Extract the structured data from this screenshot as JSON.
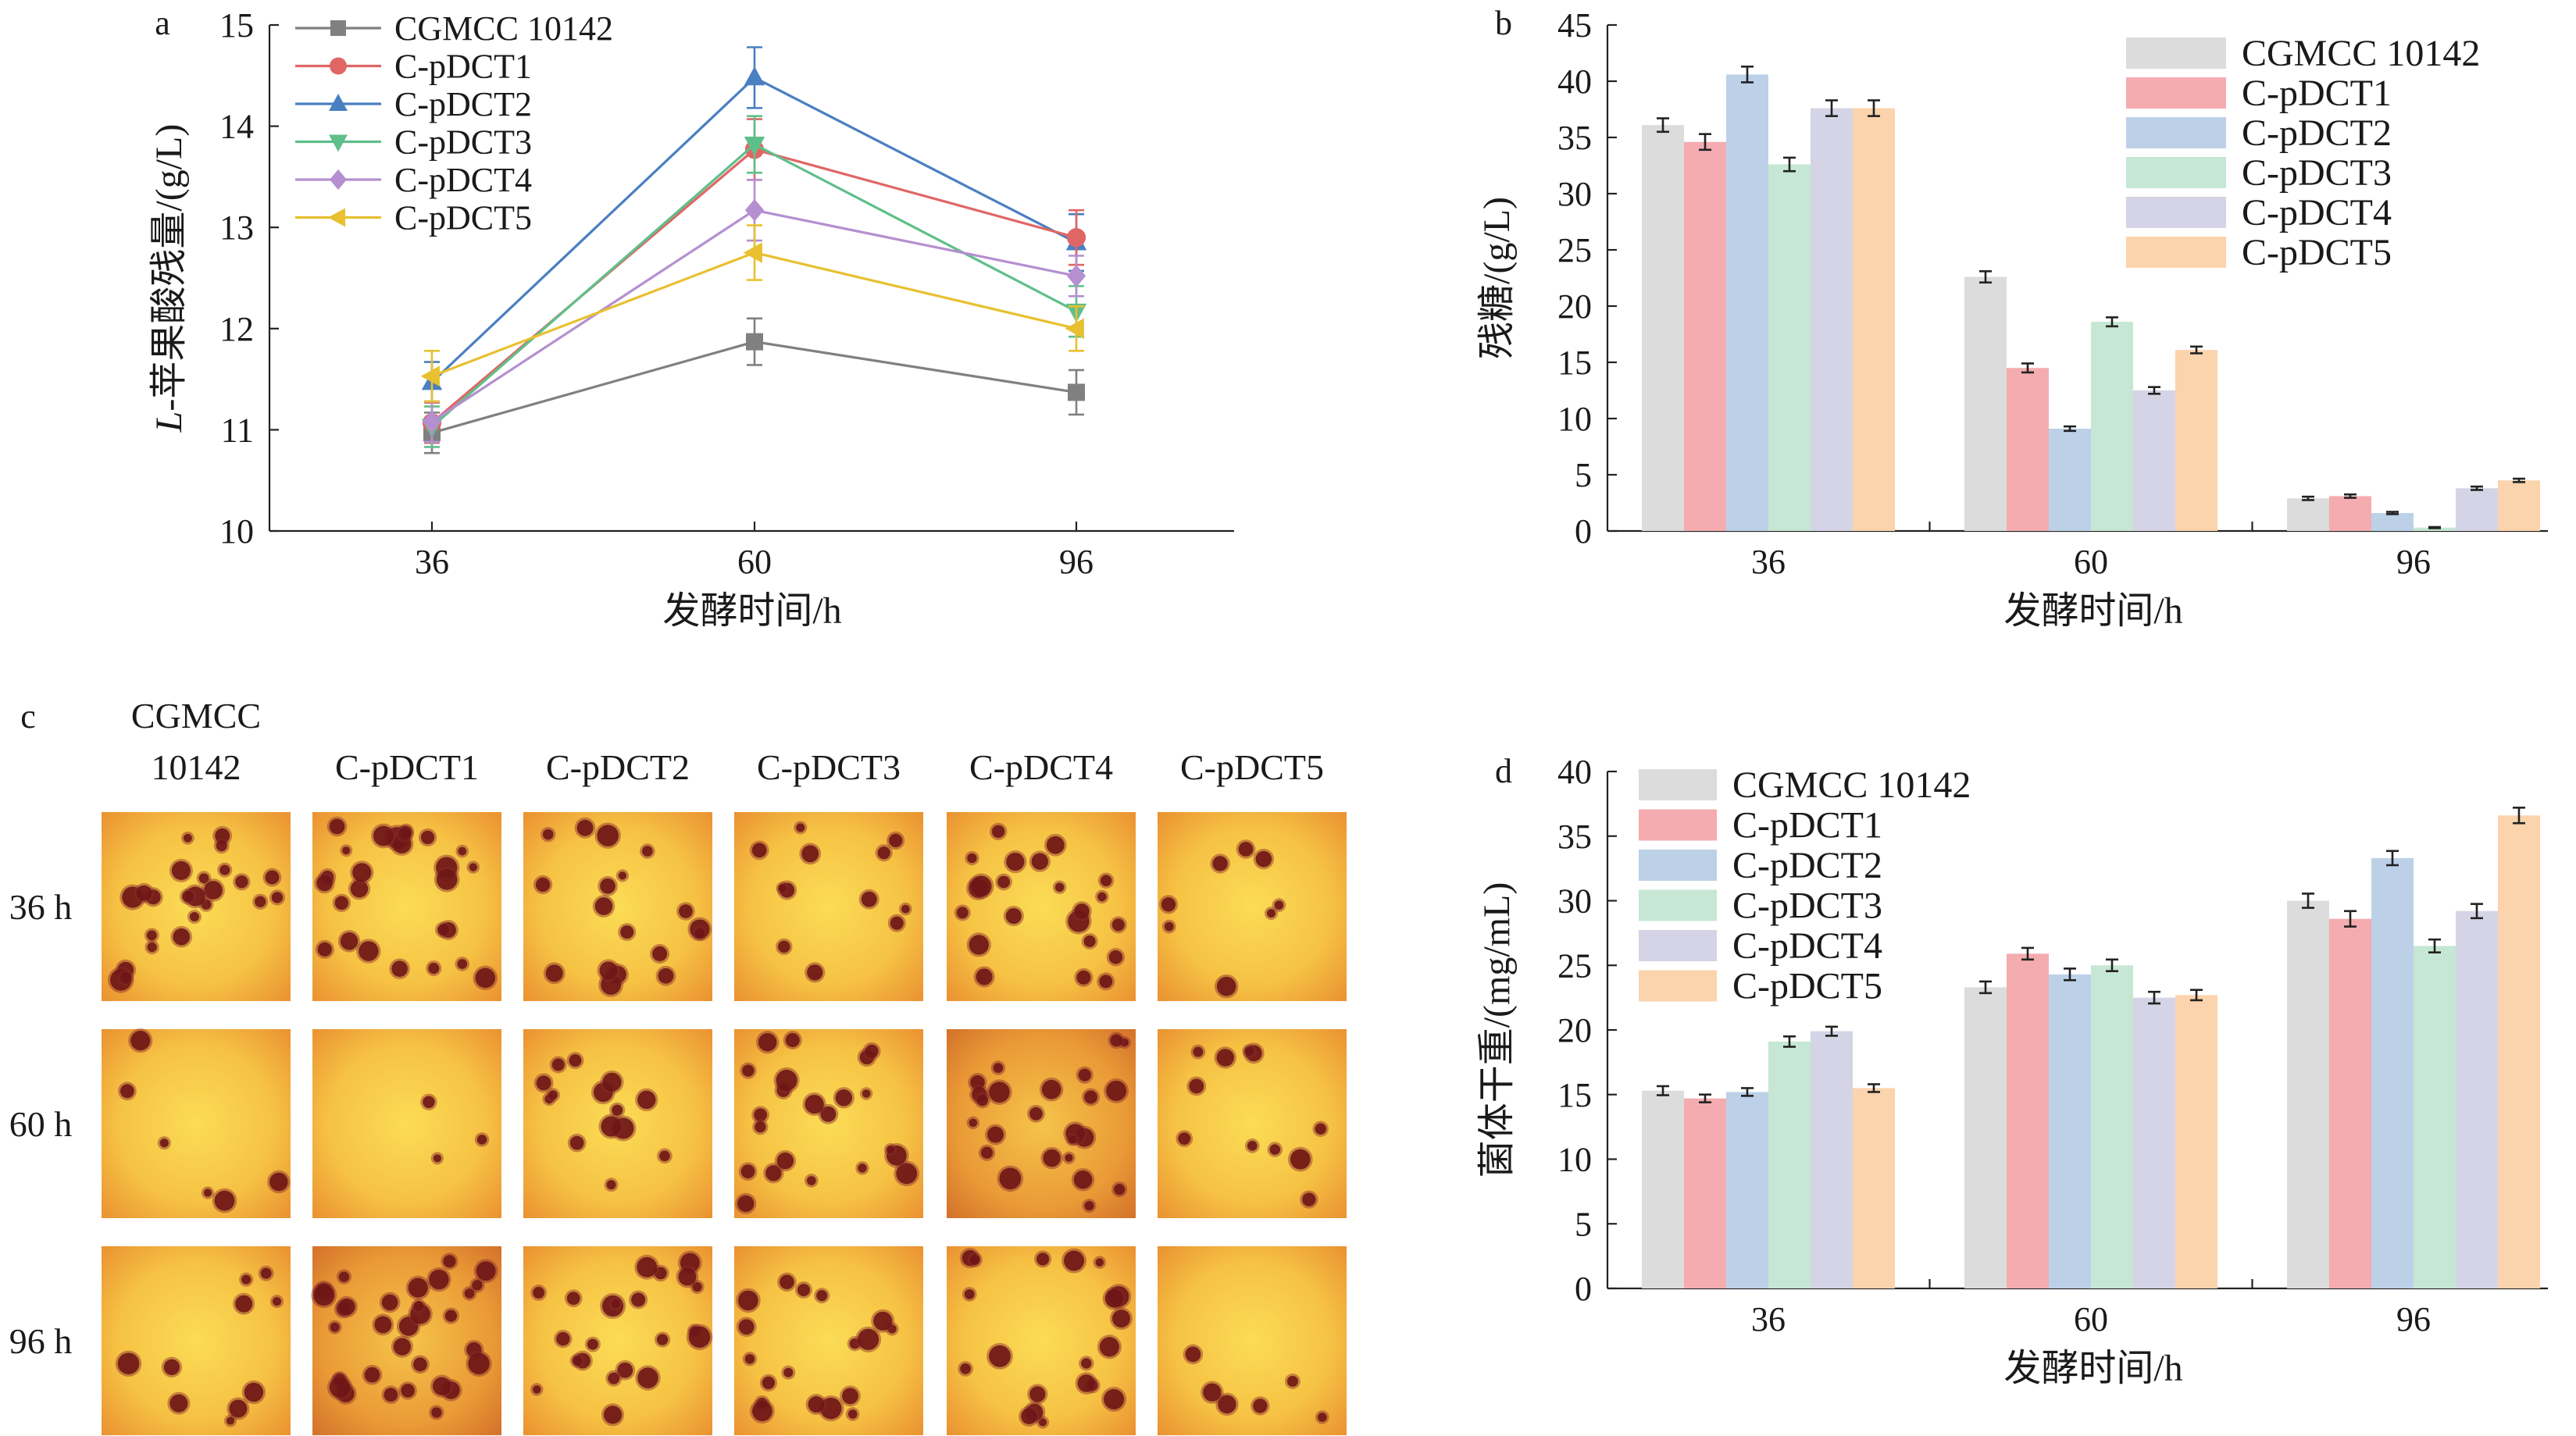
{
  "chart_data": [
    {
      "panel": "a",
      "type": "line",
      "panel_label": "a",
      "xlabel": "发酵时间/h",
      "ylabel_italic": "L",
      "ylabel_rest": "-苹果酸残量/(g/L)",
      "categories": [
        "36",
        "60",
        "96"
      ],
      "ylim": [
        10,
        15
      ],
      "yticks": [
        "10",
        "11",
        "12",
        "13",
        "14",
        "15"
      ],
      "legend_position": "top-left",
      "series": [
        {
          "name": "CGMCC 10142",
          "color": "#808080",
          "marker": "square",
          "values": [
            10.97,
            11.87,
            11.37
          ],
          "errors": [
            0.2,
            0.23,
            0.22
          ]
        },
        {
          "name": "C-pDCT1",
          "color": "#e06666",
          "marker": "circle",
          "values": [
            11.07,
            13.77,
            12.9
          ],
          "errors": [
            0.2,
            0.3,
            0.27
          ]
        },
        {
          "name": "C-pDCT2",
          "color": "#4a7fc1",
          "marker": "triangle-up",
          "values": [
            11.47,
            14.48,
            12.85
          ],
          "errors": [
            0.2,
            0.3,
            0.28
          ]
        },
        {
          "name": "C-pDCT3",
          "color": "#5fbf8a",
          "marker": "triangle-down",
          "values": [
            11.03,
            13.82,
            12.17
          ],
          "errors": [
            0.2,
            0.28,
            0.25
          ]
        },
        {
          "name": "C-pDCT4",
          "color": "#b58fd0",
          "marker": "diamond",
          "values": [
            11.08,
            13.17,
            12.52
          ],
          "errors": [
            0.2,
            0.3,
            0.2
          ]
        },
        {
          "name": "C-pDCT5",
          "color": "#e8c030",
          "marker": "triangle-left",
          "values": [
            11.53,
            12.75,
            12.0
          ],
          "errors": [
            0.25,
            0.27,
            0.22
          ]
        }
      ]
    },
    {
      "panel": "b",
      "type": "bar",
      "panel_label": "b",
      "xlabel": "发酵时间/h",
      "ylabel": "残糖/(g/L)",
      "categories": [
        "36",
        "60",
        "96"
      ],
      "ylim": [
        0,
        45
      ],
      "yticks": [
        "0",
        "5",
        "10",
        "15",
        "20",
        "25",
        "30",
        "35",
        "40",
        "45"
      ],
      "legend_position": "top-right",
      "series": [
        {
          "name": "CGMCC 10142",
          "color": "#dcdcdc",
          "values": [
            36.1,
            22.6,
            2.9
          ],
          "errors": [
            0.6,
            0.5,
            0.15
          ]
        },
        {
          "name": "C-pDCT1",
          "color": "#f4acb0",
          "values": [
            34.6,
            14.5,
            3.1
          ],
          "errors": [
            0.7,
            0.4,
            0.15
          ]
        },
        {
          "name": "C-pDCT2",
          "color": "#bcd1e8",
          "values": [
            40.6,
            9.1,
            1.6
          ],
          "errors": [
            0.7,
            0.2,
            0.1
          ]
        },
        {
          "name": "C-pDCT3",
          "color": "#c5e7d3",
          "values": [
            32.6,
            18.6,
            0.3
          ],
          "errors": [
            0.6,
            0.4,
            0.05
          ]
        },
        {
          "name": "C-pDCT4",
          "color": "#d4d4e6",
          "values": [
            37.6,
            12.5,
            3.8
          ],
          "errors": [
            0.7,
            0.3,
            0.15
          ]
        },
        {
          "name": "C-pDCT5",
          "color": "#fbd3ad",
          "values": [
            37.6,
            16.1,
            4.5
          ],
          "errors": [
            0.7,
            0.3,
            0.15
          ]
        }
      ]
    },
    {
      "panel": "d",
      "type": "bar",
      "panel_label": "d",
      "xlabel": "发酵时间/h",
      "ylabel": "菌体干重/(mg/mL)",
      "categories": [
        "36",
        "60",
        "96"
      ],
      "ylim": [
        0,
        40
      ],
      "yticks": [
        "0",
        "5",
        "10",
        "15",
        "20",
        "25",
        "30",
        "35",
        "40"
      ],
      "legend_position": "top-left",
      "series": [
        {
          "name": "CGMCC 10142",
          "color": "#dcdcdc",
          "values": [
            15.3,
            23.3,
            30.0
          ],
          "errors": [
            0.35,
            0.45,
            0.55
          ]
        },
        {
          "name": "C-pDCT1",
          "color": "#f4acb0",
          "values": [
            14.7,
            25.9,
            28.6
          ],
          "errors": [
            0.3,
            0.45,
            0.6
          ]
        },
        {
          "name": "C-pDCT2",
          "color": "#bcd1e8",
          "values": [
            15.2,
            24.3,
            33.3
          ],
          "errors": [
            0.3,
            0.45,
            0.55
          ]
        },
        {
          "name": "C-pDCT3",
          "color": "#c5e7d3",
          "values": [
            19.1,
            25.0,
            26.5
          ],
          "errors": [
            0.4,
            0.45,
            0.5
          ]
        },
        {
          "name": "C-pDCT4",
          "color": "#d4d4e6",
          "values": [
            19.9,
            22.5,
            29.2
          ],
          "errors": [
            0.35,
            0.45,
            0.55
          ]
        },
        {
          "name": "C-pDCT5",
          "color": "#fbd3ad",
          "values": [
            15.5,
            22.7,
            36.6
          ],
          "errors": [
            0.3,
            0.4,
            0.6
          ]
        }
      ]
    }
  ],
  "panel_c": {
    "label": "c",
    "column_headers": [
      [
        "CGMCC",
        "10142"
      ],
      [
        "C-pDCT1"
      ],
      [
        "C-pDCT2"
      ],
      [
        "C-pDCT3"
      ],
      [
        "C-pDCT4"
      ],
      [
        "C-pDCT5"
      ]
    ],
    "row_labels": [
      "36 h",
      "60 h",
      "96 h"
    ],
    "image_description_note": "colony micrographs (orange background, dark red colonies)"
  }
}
